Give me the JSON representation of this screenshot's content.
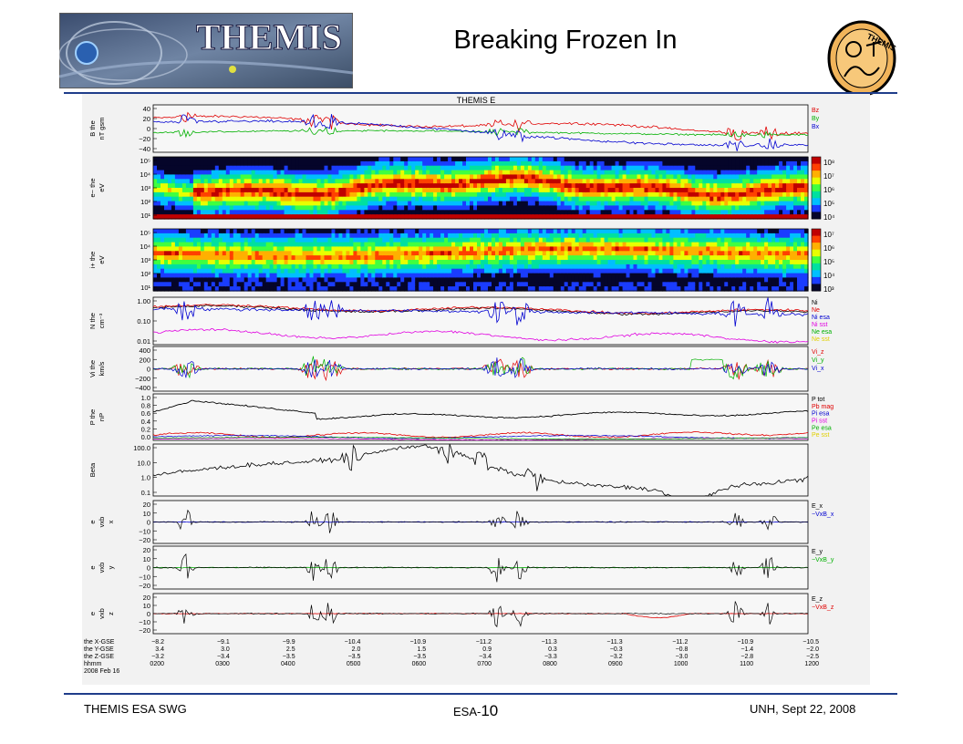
{
  "slide": {
    "title": "Breaking Frozen In",
    "logo_text": "THEMIS",
    "emblem_text": "THEMIS",
    "footer_left": "THEMIS ESA SWG",
    "footer_center_prefix": "ESA-",
    "footer_center_number": "10",
    "footer_right": "UNH,   Sept 22, 2008",
    "rule_color": "#1f3d8a"
  },
  "chart_data": {
    "type": "line",
    "title": "THEMIS E",
    "panels": [
      {
        "id": "B",
        "ylabel": [
          "B the",
          "nT gsm"
        ],
        "ticks": [
          "40",
          "20",
          "0",
          "−20",
          "−40"
        ],
        "legend": [
          {
            "name": "Bz",
            "color": "#e00000"
          },
          {
            "name": "By",
            "color": "#00b000"
          },
          {
            "name": "Bx",
            "color": "#0000d0"
          }
        ]
      },
      {
        "id": "eflux_e",
        "ylabel": [
          "e− the",
          "eV"
        ],
        "ticks": [
          "10⁵",
          "10⁴",
          "10³",
          "10²",
          "10¹"
        ],
        "colorbar": [
          "10⁸",
          "10⁷",
          "10⁶",
          "10⁵",
          "10⁴"
        ],
        "cbar_label": "eV/cm²−s−sr−eV"
      },
      {
        "id": "eflux_i",
        "ylabel": [
          "i+ the",
          "eV"
        ],
        "ticks": [
          "10⁵",
          "10⁴",
          "10³",
          "10²",
          "10¹"
        ],
        "colorbar": [
          "10⁷",
          "10⁶",
          "10⁵",
          "10⁴",
          "10³"
        ],
        "cbar_label": "eV/cm²−s−sr−eV"
      },
      {
        "id": "N",
        "ylabel": [
          "N the",
          "cm⁻³"
        ],
        "ticks": [
          "1.00",
          "0.10",
          "0.01"
        ],
        "legend": [
          {
            "name": "Ni",
            "color": "#000000"
          },
          {
            "name": "Ne",
            "color": "#e00000"
          },
          {
            "name": "Ni esa",
            "color": "#0000d0"
          },
          {
            "name": "Ni sst",
            "color": "#e000e0"
          },
          {
            "name": "Ne esa",
            "color": "#00b000"
          },
          {
            "name": "Ne sst",
            "color": "#e0d000"
          }
        ]
      },
      {
        "id": "Vi",
        "ylabel": [
          "Vi the",
          "km/s"
        ],
        "ticks": [
          "400",
          "200",
          "0",
          "−200",
          "−400"
        ],
        "legend": [
          {
            "name": "Vi_z",
            "color": "#e00000"
          },
          {
            "name": "Vi_y",
            "color": "#00b000"
          },
          {
            "name": "Vi_x",
            "color": "#0000d0"
          }
        ]
      },
      {
        "id": "P",
        "ylabel": [
          "P the",
          "nP"
        ],
        "ticks": [
          "1.0",
          "0.8",
          "0.6",
          "0.4",
          "0.2",
          "0.0"
        ],
        "legend": [
          {
            "name": "P tot",
            "color": "#000000"
          },
          {
            "name": "Pb mag",
            "color": "#e00000"
          },
          {
            "name": "Pi esa",
            "color": "#0000d0"
          },
          {
            "name": "Pi sst",
            "color": "#e000e0"
          },
          {
            "name": "Pe esa",
            "color": "#00b000"
          },
          {
            "name": "Pe sst",
            "color": "#e0d000"
          }
        ]
      },
      {
        "id": "Beta",
        "ylabel": [
          "Beta"
        ],
        "ticks": [
          "100.0",
          "10.0",
          "1.0",
          "0.1"
        ],
        "legend": []
      },
      {
        "id": "Ex",
        "ylabel": [
          "e",
          "vxb",
          "x"
        ],
        "ticks": [
          "20",
          "10",
          "0",
          "−10",
          "−20"
        ],
        "legend": [
          {
            "name": "E_x",
            "color": "#000000"
          },
          {
            "name": "−VxB_x",
            "color": "#0000d0"
          }
        ]
      },
      {
        "id": "Ey",
        "ylabel": [
          "e",
          "vxb",
          "y"
        ],
        "ticks": [
          "20",
          "10",
          "0",
          "−10",
          "−20"
        ],
        "legend": [
          {
            "name": "E_y",
            "color": "#000000"
          },
          {
            "name": "−VxB_y",
            "color": "#00b000"
          }
        ]
      },
      {
        "id": "Ez",
        "ylabel": [
          "e",
          "vxb",
          "z"
        ],
        "ticks": [
          "20",
          "10",
          "0",
          "−10",
          "−20"
        ],
        "legend": [
          {
            "name": "E_z",
            "color": "#000000"
          },
          {
            "name": "−VxB_z",
            "color": "#e00000"
          }
        ]
      }
    ],
    "x_rows": [
      {
        "label": "the X-GSE",
        "values": [
          "−8.2",
          "−9.1",
          "−9.9",
          "−10.4",
          "−10.9",
          "−11.2",
          "−11.3",
          "−11.3",
          "−11.2",
          "−10.9",
          "−10.5"
        ]
      },
      {
        "label": "the Y-GSE",
        "values": [
          "3.4",
          "3.0",
          "2.5",
          "2.0",
          "1.5",
          "0.9",
          "0.3",
          "−0.3",
          "−0.8",
          "−1.4",
          "−2.0"
        ]
      },
      {
        "label": "the Z-GSE",
        "values": [
          "−3.2",
          "−3.4",
          "−3.5",
          "−3.5",
          "−3.5",
          "−3.4",
          "−3.3",
          "−3.2",
          "−3.0",
          "−2.8",
          "−2.5"
        ]
      },
      {
        "label": "hhmm",
        "values": [
          "0200",
          "0300",
          "0400",
          "0500",
          "0600",
          "0700",
          "0800",
          "0900",
          "1000",
          "1100",
          "1200"
        ]
      }
    ],
    "date_label": "2008 Feb 16"
  }
}
